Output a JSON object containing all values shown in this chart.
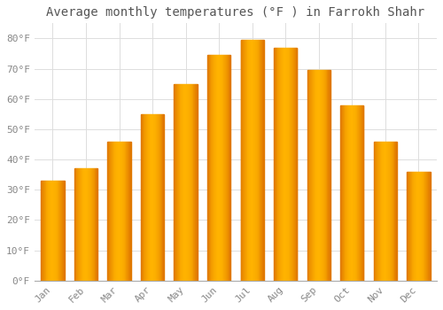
{
  "title": "Average monthly temperatures (°F ) in Farrokh Shahr",
  "months": [
    "Jan",
    "Feb",
    "Mar",
    "Apr",
    "May",
    "Jun",
    "Jul",
    "Aug",
    "Sep",
    "Oct",
    "Nov",
    "Dec"
  ],
  "values": [
    33,
    37,
    46,
    55,
    65,
    74.5,
    79.5,
    77,
    69.5,
    58,
    46,
    36
  ],
  "bar_color_center": "#FFB300",
  "bar_color_edge": "#E07800",
  "background_color": "#FFFFFF",
  "plot_bg_color": "#FFFFFF",
  "grid_color": "#DDDDDD",
  "ylim": [
    0,
    85
  ],
  "yticks": [
    0,
    10,
    20,
    30,
    40,
    50,
    60,
    70,
    80
  ],
  "ytick_labels": [
    "0°F",
    "10°F",
    "20°F",
    "30°F",
    "40°F",
    "50°F",
    "60°F",
    "70°F",
    "80°F"
  ],
  "title_fontsize": 10,
  "tick_fontsize": 8,
  "title_color": "#555555",
  "tick_color": "#888888",
  "font_family": "monospace",
  "bar_width": 0.7
}
